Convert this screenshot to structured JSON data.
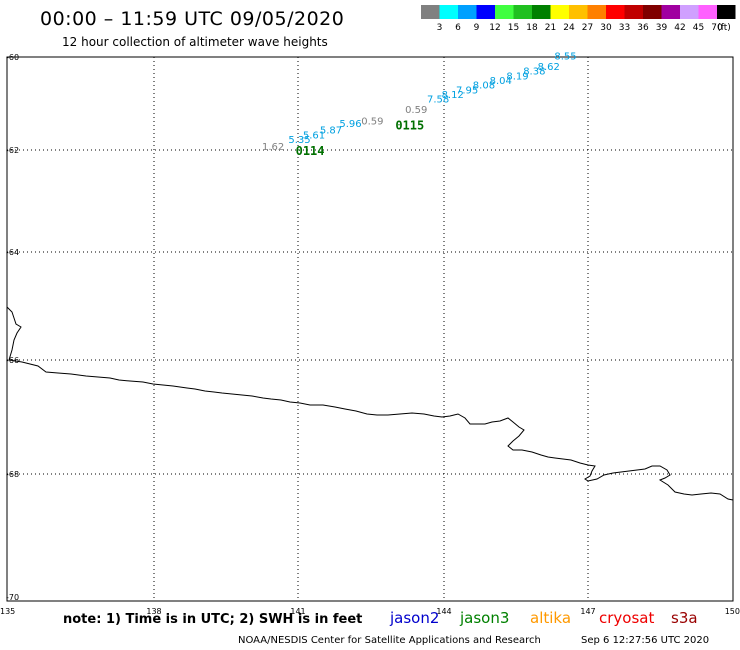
{
  "title": "00:00 – 11:59 UTC 09/05/2020",
  "subtitle": "12 hour collection of altimeter wave heights",
  "legend": {
    "swatches": [
      {
        "color": "#808080",
        "label": "3"
      },
      {
        "color": "#00ffff",
        "label": "6"
      },
      {
        "color": "#00a0ff",
        "label": "9"
      },
      {
        "color": "#0000ff",
        "label": "12"
      },
      {
        "color": "#40ff40",
        "label": "15"
      },
      {
        "color": "#20c020",
        "label": "18"
      },
      {
        "color": "#008000",
        "label": "21"
      },
      {
        "color": "#ffff00",
        "label": "24"
      },
      {
        "color": "#ffc000",
        "label": "27"
      },
      {
        "color": "#ff8000",
        "label": "30"
      },
      {
        "color": "#ff0000",
        "label": "33"
      },
      {
        "color": "#c00000",
        "label": "36"
      },
      {
        "color": "#800000",
        "label": "39"
      },
      {
        "color": "#a000a0",
        "label": "42"
      },
      {
        "color": "#d0a0ff",
        "label": "45"
      },
      {
        "color": "#ff60ff",
        "label": "70"
      },
      {
        "color": "#000000",
        "label": ""
      }
    ],
    "unit": "(ft)"
  },
  "map": {
    "lat_labels": [
      "-60",
      "-62",
      "-64",
      "-66",
      "-68",
      "-70"
    ],
    "lon_labels": [
      "135",
      "138",
      "141",
      "144",
      "147",
      "150"
    ],
    "gridlines": true,
    "region": {
      "lon_min": 135,
      "lon_max": 150,
      "lat_min": -70,
      "lat_max": -60
    }
  },
  "wave_labels": [
    {
      "text": "1.62",
      "lon": 140.25,
      "lat": -62.0,
      "color": "#808080"
    },
    {
      "text": "5.35",
      "lon": 140.8,
      "lat": -61.85,
      "color": "#00a0e0"
    },
    {
      "text": "5.61",
      "lon": 141.1,
      "lat": -61.75,
      "color": "#00a0e0"
    },
    {
      "text": "5.87",
      "lon": 141.45,
      "lat": -61.65,
      "color": "#00a0e0"
    },
    {
      "text": "5.96",
      "lon": 141.85,
      "lat": -61.5,
      "color": "#00a0e0"
    },
    {
      "text": "0.59",
      "lon": 142.3,
      "lat": -61.45,
      "color": "#808080"
    },
    {
      "text": "0.59",
      "lon": 143.2,
      "lat": -61.2,
      "color": "#808080"
    },
    {
      "text": "7.58",
      "lon": 143.65,
      "lat": -60.98,
      "color": "#00a0e0"
    },
    {
      "text": "8.12",
      "lon": 143.95,
      "lat": -60.88,
      "color": "#00a0e0"
    },
    {
      "text": "7.95",
      "lon": 144.25,
      "lat": -60.78,
      "color": "#00a0e0"
    },
    {
      "text": "8.08",
      "lon": 144.6,
      "lat": -60.68,
      "color": "#00a0e0"
    },
    {
      "text": "8.04",
      "lon": 144.95,
      "lat": -60.58,
      "color": "#00a0e0"
    },
    {
      "text": "8.19",
      "lon": 145.3,
      "lat": -60.48,
      "color": "#00a0e0"
    },
    {
      "text": "8.38",
      "lon": 145.65,
      "lat": -60.38,
      "color": "#00a0e0"
    },
    {
      "text": "8.62",
      "lon": 145.95,
      "lat": -60.28,
      "color": "#00a0e0"
    },
    {
      "text": "8.55",
      "lon": 146.3,
      "lat": -60.05,
      "color": "#00a0e0"
    }
  ],
  "pass_labels": [
    {
      "text": "0114",
      "lon": 140.95,
      "lat": -62.0,
      "color": "#007000"
    },
    {
      "text": "0115",
      "lon": 143.0,
      "lat": -61.45,
      "color": "#007000"
    }
  ],
  "footer": {
    "note": "note: 1) Time is in UTC; 2) SWH is in feet",
    "satellites": [
      {
        "name": "jason2",
        "color": "#0000cc"
      },
      {
        "name": "jason3",
        "color": "#008000"
      },
      {
        "name": "altika",
        "color": "#ff9900"
      },
      {
        "name": "cryosat",
        "color": "#ee0000"
      },
      {
        "name": "s3a",
        "color": "#990000"
      }
    ],
    "credit": "NOAA/NESDIS Center for Satellite Applications and Research",
    "timestamp": "Sep  6 12:27:56 UTC 2020"
  }
}
